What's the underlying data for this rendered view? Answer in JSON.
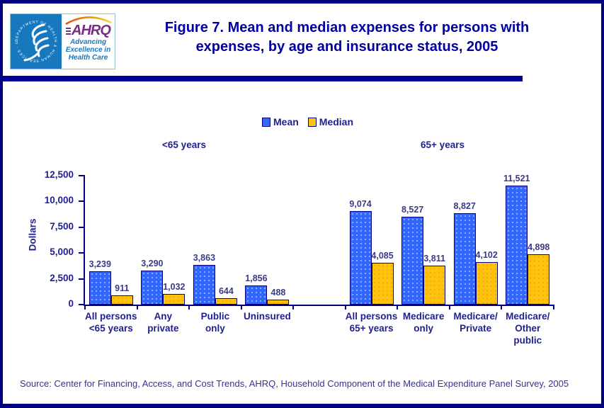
{
  "page": {
    "header": {
      "logo": {
        "seal_text": "DEPARTMENT OF HEALTH & HUMAN SERVICES · USA",
        "acronym": "AHRQ",
        "tagline_lines": [
          "Advancing",
          "Excellence in",
          "Health Care"
        ]
      },
      "title_lines": [
        "Figure 7. Mean and median expenses for persons with",
        "expenses, by age and insurance status, 2005"
      ]
    },
    "source": "Source: Center for Financing, Access, and Cost Trends, AHRQ, Household Component of the Medical Expenditure Panel Survey, 2005"
  },
  "chart_data": {
    "type": "bar",
    "title": "Mean and median expenses for persons with expenses, by age and insurance status, 2005",
    "xlabel": "",
    "ylabel": "Dollars",
    "ylim": [
      0,
      12500
    ],
    "ytick_values": [
      0,
      2500,
      5000,
      7500,
      10000,
      12500
    ],
    "ytick_labels": [
      "0",
      "2,500",
      "5,000",
      "7,500",
      "10,000",
      "12,500"
    ],
    "grid": false,
    "legend_position": "top-center",
    "group_labels": [
      "<65 years",
      "65+ years"
    ],
    "group_split_index": 4,
    "categories": [
      "All persons <65 years",
      "Any private",
      "Public only",
      "Uninsured",
      "All persons 65+ years",
      "Medicare only",
      "Medicare/Private",
      "Medicare/Other public"
    ],
    "category_label_lines": [
      [
        "All persons",
        "<65 years"
      ],
      [
        "Any",
        "private"
      ],
      [
        "Public",
        "only"
      ],
      [
        "Uninsured"
      ],
      [
        "All persons",
        "65+ years"
      ],
      [
        "Medicare",
        "only"
      ],
      [
        "Medicare/",
        "Private"
      ],
      [
        "Medicare/",
        "Other",
        "public"
      ]
    ],
    "series": [
      {
        "name": "Mean",
        "color": "#3366FF",
        "values": [
          3239,
          3290,
          3863,
          1856,
          9074,
          8527,
          8827,
          11521
        ],
        "labels": [
          "3,239",
          "3,290",
          "3,863",
          "1,856",
          "9,074",
          "8,527",
          "8,827",
          "11,521"
        ]
      },
      {
        "name": "Median",
        "color": "#FFC20E",
        "values": [
          911,
          1032,
          644,
          488,
          4085,
          3811,
          4102,
          4898
        ],
        "labels": [
          "911",
          "1,032",
          "644",
          "488",
          "4,085",
          "3,811",
          "4,102",
          "4,898"
        ]
      }
    ]
  },
  "colors": {
    "page_border": "#000080",
    "title_text": "#0000A0",
    "header_rule": "#000099",
    "axis": "#000080",
    "tick_label": "#1F1F8F",
    "value_label": "#3B3B85",
    "source_text": "#333399",
    "mean_bar": "#3366FF",
    "median_bar": "#FFC20E",
    "logo_blue": "#1878BE",
    "ahrq_purple": "#7B2B85"
  }
}
